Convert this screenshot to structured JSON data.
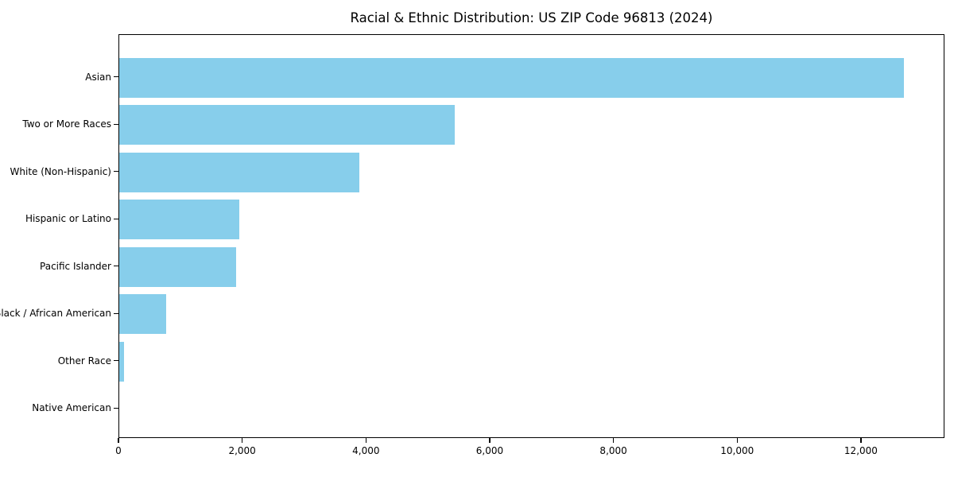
{
  "title": "Racial & Ethnic Distribution: US ZIP Code 96813 (2024)",
  "colors": {
    "bar": "#87CEEB",
    "axis": "#000000",
    "text": "#000000",
    "background": "#FFFFFF"
  },
  "chart_data": {
    "type": "bar",
    "orientation": "horizontal",
    "title": "Racial & Ethnic Distribution: US ZIP Code 96813 (2024)",
    "categories": [
      "Asian",
      "Two or More Races",
      "White (Non-Hispanic)",
      "Hispanic or Latino",
      "Pacific Islander",
      "Black / African American",
      "Other Race",
      "Native American"
    ],
    "values": [
      12700,
      5440,
      3900,
      1960,
      1900,
      770,
      90,
      15
    ],
    "xlabel": "",
    "ylabel": "",
    "xlim": [
      0,
      13350
    ],
    "xticks": [
      0,
      2000,
      4000,
      6000,
      8000,
      10000,
      12000
    ],
    "xtick_labels": [
      "0",
      "2,000",
      "4,000",
      "6,000",
      "8,000",
      "10,000",
      "12,000"
    ],
    "grid": false,
    "legend": null,
    "bar_color": "#87CEEB",
    "sort_order": "descending"
  }
}
